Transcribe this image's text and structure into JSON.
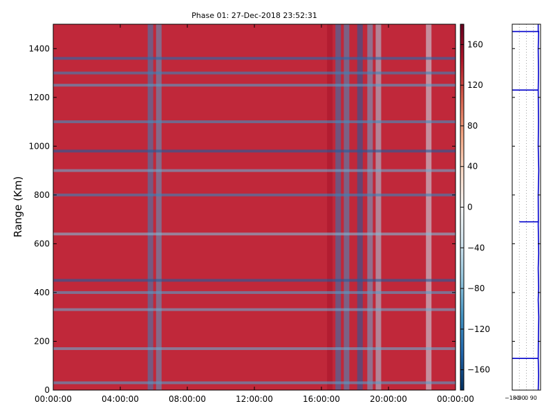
{
  "chart_data": [
    {
      "type": "heatmap",
      "title": "Phase 01: 27-Dec-2018 23:52:31",
      "xlabel": "",
      "ylabel": "Range (Km)",
      "xlim": [
        0,
        24
      ],
      "ylim": [
        0,
        1500
      ],
      "x_ticks": [
        0,
        4,
        8,
        12,
        16,
        20,
        24
      ],
      "x_tick_labels": [
        "00:00:00",
        "04:00:00",
        "08:00:00",
        "12:00:00",
        "16:00:00",
        "20:00:00",
        "00:00:00"
      ],
      "y_ticks": [
        0,
        200,
        400,
        600,
        800,
        1000,
        1200,
        1400
      ],
      "y_tick_labels": [
        "0",
        "200",
        "400",
        "600",
        "800",
        "1000",
        "1200",
        "1400"
      ],
      "background_value": 160,
      "vertical_features": [
        {
          "time": 5.8,
          "value": -120
        },
        {
          "time": 6.3,
          "value": -100
        },
        {
          "time": 16.5,
          "value": 150
        },
        {
          "time": 17.0,
          "value": -130
        },
        {
          "time": 17.5,
          "value": -110
        },
        {
          "time": 18.3,
          "value": -150
        },
        {
          "time": 18.9,
          "value": -90
        },
        {
          "time": 19.4,
          "value": -60
        },
        {
          "time": 22.4,
          "value": -40
        }
      ],
      "horizontal_features": [
        {
          "range": 1360,
          "value": -140
        },
        {
          "range": 1300,
          "value": -120
        },
        {
          "range": 1250,
          "value": -100
        },
        {
          "range": 1100,
          "value": -110
        },
        {
          "range": 980,
          "value": -150
        },
        {
          "range": 900,
          "value": -90
        },
        {
          "range": 800,
          "value": -120
        },
        {
          "range": 640,
          "value": -80
        },
        {
          "range": 450,
          "value": -150
        },
        {
          "range": 400,
          "value": -100
        },
        {
          "range": 330,
          "value": -90
        },
        {
          "range": 170,
          "value": -90
        },
        {
          "range": 30,
          "value": -100
        }
      ],
      "grid": false
    },
    {
      "type": "colorbar",
      "range": [
        -180,
        180
      ],
      "ticks": [
        160,
        120,
        80,
        40,
        0,
        -40,
        -80,
        -120,
        -160
      ],
      "tick_labels": [
        "160",
        "120",
        "80",
        "40",
        "0",
        "−40",
        "−80",
        "−120",
        "−160"
      ],
      "colors": [
        "#053061",
        "#2166ac",
        "#4393c3",
        "#92c5de",
        "#d1e5f0",
        "#f7f7f7",
        "#fddbc7",
        "#f4a582",
        "#d6604d",
        "#b2182b",
        "#67001f"
      ]
    },
    {
      "type": "line",
      "x_tick_labels": [
        "−180",
        "−90",
        "0",
        "90"
      ],
      "xlim": [
        -180,
        180
      ],
      "ylim": [
        0,
        1500
      ],
      "grid": true,
      "series": [
        {
          "color": "#0000cc",
          "points": [
            [
              150,
              0
            ],
            [
              155,
              60
            ],
            [
              150,
              130
            ],
            [
              -180,
              130
            ],
            [
              150,
              130
            ],
            [
              152,
              200
            ],
            [
              157,
              300
            ],
            [
              150,
              370
            ],
            [
              155,
              420
            ],
            [
              150,
              500
            ],
            [
              156,
              560
            ],
            [
              150,
              680
            ],
            [
              152,
              690
            ],
            [
              -90,
              690
            ],
            [
              152,
              690
            ],
            [
              150,
              800
            ],
            [
              157,
              900
            ],
            [
              150,
              1000
            ],
            [
              154,
              1100
            ],
            [
              150,
              1230
            ],
            [
              -180,
              1230
            ],
            [
              150,
              1230
            ],
            [
              154,
              1300
            ],
            [
              150,
              1400
            ],
            [
              155,
              1470
            ],
            [
              -180,
              1470
            ],
            [
              150,
              1470
            ],
            [
              150,
              1500
            ]
          ]
        }
      ]
    }
  ]
}
